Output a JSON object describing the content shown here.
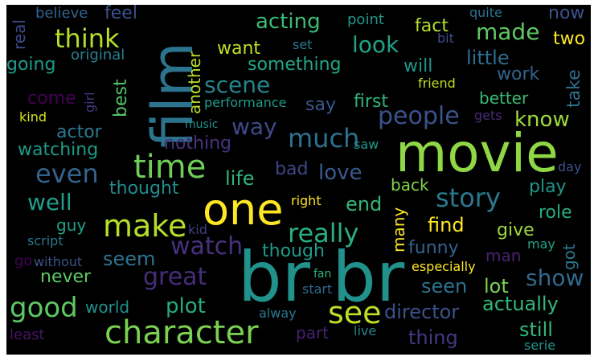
{
  "words": [
    {
      "text": "br br",
      "color": "#21918c"
    },
    {
      "text": "movie",
      "color": "#8fd744"
    },
    {
      "text": "film",
      "color": "#2c738e"
    },
    {
      "text": "one",
      "color": "#fde725"
    },
    {
      "text": "character",
      "color": "#7ad151"
    },
    {
      "text": "time",
      "color": "#6ece58"
    },
    {
      "text": "make",
      "color": "#b5de2b"
    },
    {
      "text": "see",
      "color": "#bddf26"
    },
    {
      "text": "good",
      "color": "#5ec962"
    },
    {
      "text": "story",
      "color": "#2a788e"
    },
    {
      "text": "even",
      "color": "#33638d"
    },
    {
      "text": "think",
      "color": "#b5de2b"
    },
    {
      "text": "really",
      "color": "#29af7f"
    },
    {
      "text": "watch",
      "color": "#46327e"
    },
    {
      "text": "people",
      "color": "#3b528b"
    },
    {
      "text": "great",
      "color": "#472d7b"
    },
    {
      "text": "much",
      "color": "#2c718e"
    },
    {
      "text": "show",
      "color": "#31688e"
    },
    {
      "text": "scene",
      "color": "#25858e"
    },
    {
      "text": "well",
      "color": "#1f9e89"
    },
    {
      "text": "way",
      "color": "#3e4989"
    },
    {
      "text": "look",
      "color": "#20a386"
    },
    {
      "text": "made",
      "color": "#5ec962"
    },
    {
      "text": "acting",
      "color": "#3dbc74"
    },
    {
      "text": "love",
      "color": "#375b8d"
    },
    {
      "text": "know",
      "color": "#9fda3a"
    },
    {
      "text": "plot",
      "color": "#25ab82"
    },
    {
      "text": "life",
      "color": "#2fb47c"
    },
    {
      "text": "seen",
      "color": "#2c718e"
    },
    {
      "text": "director",
      "color": "#3b528b"
    },
    {
      "text": "thing",
      "color": "#443983"
    },
    {
      "text": "still",
      "color": "#32b67a"
    },
    {
      "text": "actually",
      "color": "#35b779"
    },
    {
      "text": "lot",
      "color": "#7ad151"
    },
    {
      "text": "seem",
      "color": "#2c738e"
    },
    {
      "text": "end",
      "color": "#35b779"
    },
    {
      "text": "little",
      "color": "#2e6e8e"
    },
    {
      "text": "find",
      "color": "#fde725"
    },
    {
      "text": "give",
      "color": "#9bd93c"
    },
    {
      "text": "something",
      "color": "#22a785"
    },
    {
      "text": "bad",
      "color": "#3f4788"
    },
    {
      "text": "first",
      "color": "#2db27d"
    },
    {
      "text": "say",
      "color": "#38598c"
    },
    {
      "text": "will",
      "color": "#1f968b"
    },
    {
      "text": "want",
      "color": "#c0df25"
    },
    {
      "text": "fact",
      "color": "#b5de2b"
    },
    {
      "text": "two",
      "color": "#fde725"
    },
    {
      "text": "now",
      "color": "#3b528b"
    },
    {
      "text": "work",
      "color": "#33638d"
    },
    {
      "text": "better",
      "color": "#3bbb75"
    },
    {
      "text": "best",
      "color": "#52c569"
    },
    {
      "text": "another",
      "color": "#b8de29"
    },
    {
      "text": "going",
      "color": "#1e9b8a"
    },
    {
      "text": "real",
      "color": "#3e4a89"
    },
    {
      "text": "feel",
      "color": "#3b528b"
    },
    {
      "text": "believe",
      "color": "#33638d"
    },
    {
      "text": "point",
      "color": "#1f978b"
    },
    {
      "text": "quite",
      "color": "#2c728e"
    },
    {
      "text": "set",
      "color": "#2a788e"
    },
    {
      "text": "bit",
      "color": "#3e4c8a"
    },
    {
      "text": "original",
      "color": "#26818e"
    },
    {
      "text": "take",
      "color": "#2e6f8e"
    },
    {
      "text": "friend",
      "color": "#c2df23"
    },
    {
      "text": "come",
      "color": "#440154"
    },
    {
      "text": "girl",
      "color": "#443a83"
    },
    {
      "text": "performance",
      "color": "#1e9c89"
    },
    {
      "text": "kind",
      "color": "#d8e219"
    },
    {
      "text": "gets",
      "color": "#472c7a"
    },
    {
      "text": "actor",
      "color": "#2a788e"
    },
    {
      "text": "music",
      "color": "#21908d"
    },
    {
      "text": "nothing",
      "color": "#46337e"
    },
    {
      "text": "watching",
      "color": "#1f9a8a"
    },
    {
      "text": "saw",
      "color": "#1f968b"
    },
    {
      "text": "day",
      "color": "#3b528b"
    },
    {
      "text": "thought",
      "color": "#238a8d"
    },
    {
      "text": "play",
      "color": "#1f968b"
    },
    {
      "text": "back",
      "color": "#81d34d"
    },
    {
      "text": "right",
      "color": "#fde725"
    },
    {
      "text": "kid",
      "color": "#433e85"
    },
    {
      "text": "role",
      "color": "#26ad81"
    },
    {
      "text": "guy",
      "color": "#1fa188"
    },
    {
      "text": "many",
      "color": "#fde725"
    },
    {
      "text": "script",
      "color": "#2a778e"
    },
    {
      "text": "funny",
      "color": "#34608d"
    },
    {
      "text": "may",
      "color": "#20a386"
    },
    {
      "text": "go",
      "color": "#440154"
    },
    {
      "text": "without",
      "color": "#3b528b"
    },
    {
      "text": "though",
      "color": "#1e9b8a"
    },
    {
      "text": "man",
      "color": "#482475"
    },
    {
      "text": "got",
      "color": "#2b748e"
    },
    {
      "text": "especially",
      "color": "#fde725"
    },
    {
      "text": "never",
      "color": "#5ec962"
    },
    {
      "text": "fan",
      "color": "#2fb47c"
    },
    {
      "text": "start",
      "color": "#306a8e"
    },
    {
      "text": "world",
      "color": "#21918c"
    },
    {
      "text": "alway",
      "color": "#2a788e"
    },
    {
      "text": "part",
      "color": "#482173"
    },
    {
      "text": "live",
      "color": "#25858e"
    },
    {
      "text": "least",
      "color": "#471365"
    },
    {
      "text": "serie",
      "color": "#20928c"
    }
  ]
}
